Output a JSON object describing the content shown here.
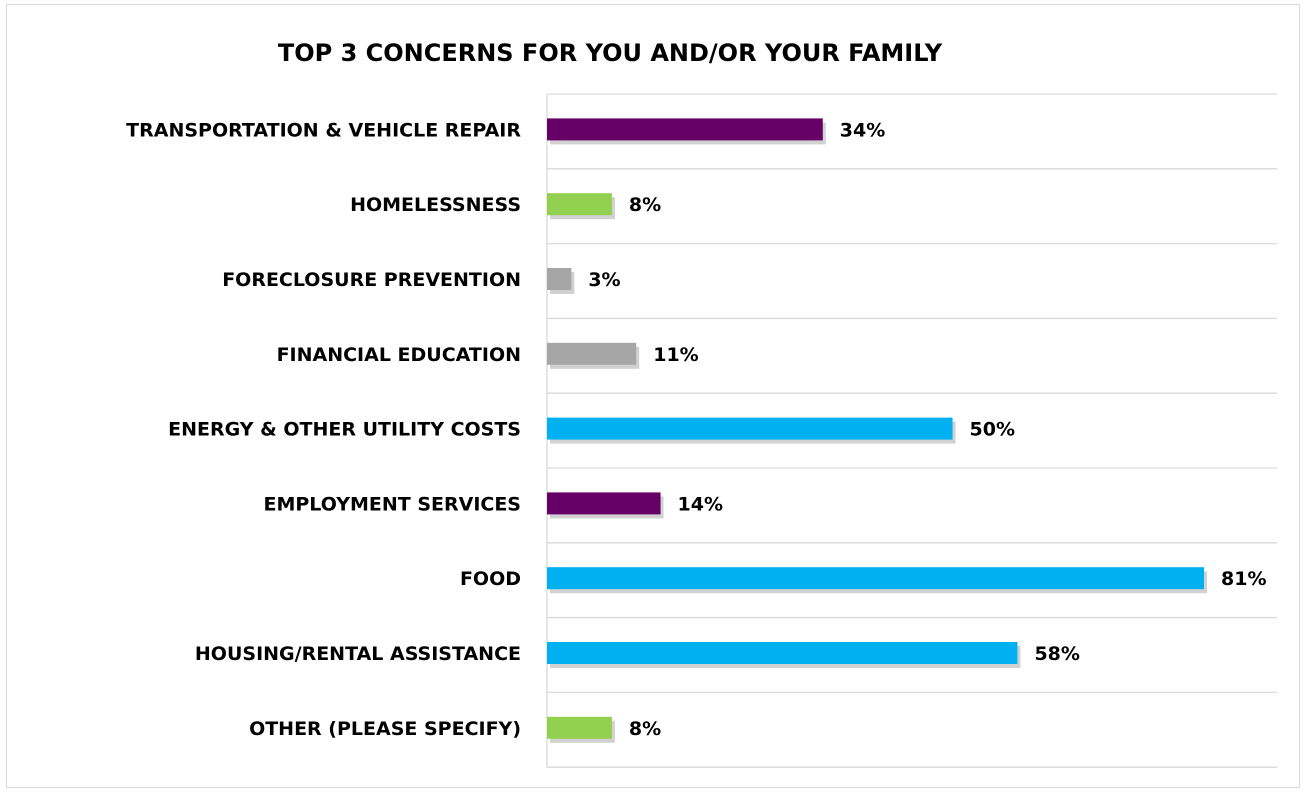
{
  "chart_data": {
    "type": "bar",
    "orientation": "horizontal",
    "title": "TOP 3 CONCERNS FOR YOU AND/OR YOUR FAMILY",
    "categories": [
      "TRANSPORTATION & VEHICLE REPAIR",
      "HOMELESSNESS",
      "FORECLOSURE PREVENTION",
      "FINANCIAL EDUCATION",
      "ENERGY & OTHER UTILITY COSTS",
      "EMPLOYMENT SERVICES",
      "FOOD",
      "HOUSING/RENTAL ASSISTANCE",
      "OTHER (PLEASE SPECIFY)"
    ],
    "values": [
      34,
      8,
      3,
      11,
      50,
      14,
      81,
      58,
      8
    ],
    "value_labels": [
      "34%",
      "8%",
      "3%",
      "11%",
      "50%",
      "14%",
      "81%",
      "58%",
      "8%"
    ],
    "colors": [
      "#660066",
      "#92d050",
      "#a6a6a6",
      "#a6a6a6",
      "#00b0f0",
      "#660066",
      "#00b0f0",
      "#00b0f0",
      "#92d050"
    ],
    "xlim": [
      0,
      90
    ],
    "grid": true,
    "legend": "none"
  }
}
